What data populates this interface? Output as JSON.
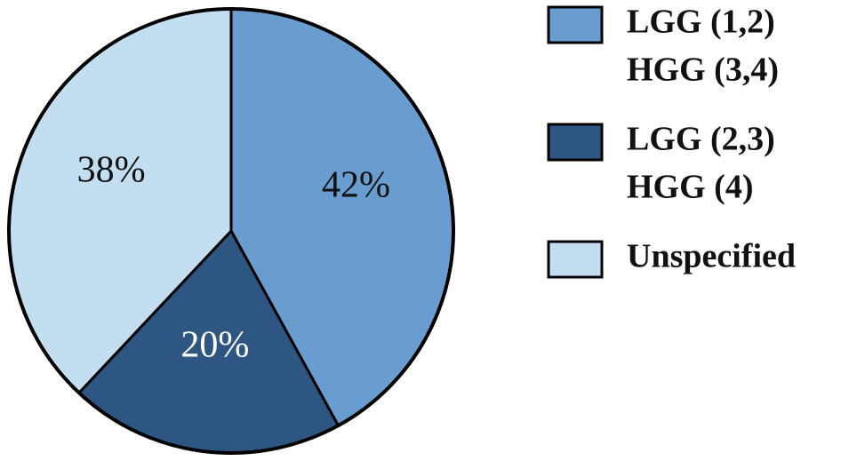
{
  "chart_data": {
    "type": "pie",
    "categories": [
      [
        "LGG (1,2)",
        "HGG (3,4)"
      ],
      [
        "LGG (2,3)",
        "HGG (4)"
      ],
      [
        "Unspecified"
      ]
    ],
    "values": [
      42,
      20,
      38
    ],
    "value_labels": [
      "42%",
      "20%",
      "38%"
    ],
    "colors": [
      "#6a9dcf",
      "#2e5682",
      "#c2def0"
    ],
    "legend": "right"
  }
}
